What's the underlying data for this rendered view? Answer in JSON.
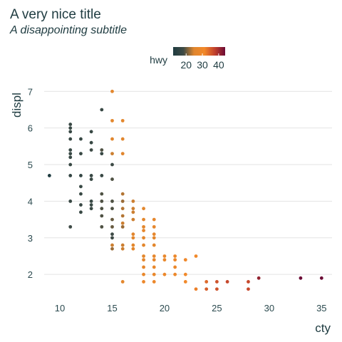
{
  "page": {
    "title": "A very nice title",
    "subtitle": "A disappointing subtitle"
  },
  "chart_data": {
    "type": "scatter",
    "title": "A very nice title",
    "subtitle": "A disappointing subtitle",
    "xlabel": "cty",
    "ylabel": "displ",
    "xlim": [
      8.5,
      36
    ],
    "ylim": [
      1.4,
      7.2
    ],
    "x_ticks": [
      10,
      15,
      20,
      25,
      30,
      35
    ],
    "y_ticks": [
      2,
      3,
      4,
      5,
      6,
      7
    ],
    "grid": "horizontal",
    "legend": {
      "title": "hwy",
      "position": "top",
      "type": "colorbar",
      "ticks": [
        20,
        30,
        40
      ],
      "range": [
        12,
        44
      ],
      "colors": [
        "#1e3b40",
        "#3f4b45",
        "#e0862e",
        "#f2892a",
        "#c1412c",
        "#6b0a35"
      ]
    },
    "points": [
      [
        9,
        4.7,
        12
      ],
      [
        11,
        6.1,
        17
      ],
      [
        11,
        6.0,
        17
      ],
      [
        11,
        5.9,
        17
      ],
      [
        11,
        5.7,
        17
      ],
      [
        11,
        5.4,
        17
      ],
      [
        11,
        5.3,
        17
      ],
      [
        11,
        5.2,
        17
      ],
      [
        11,
        5.0,
        17
      ],
      [
        11,
        4.7,
        16
      ],
      [
        11,
        4.0,
        17
      ],
      [
        11,
        3.3,
        18
      ],
      [
        12,
        5.7,
        17
      ],
      [
        12,
        5.3,
        17
      ],
      [
        12,
        4.7,
        16
      ],
      [
        12,
        4.4,
        17
      ],
      [
        12,
        4.2,
        17
      ],
      [
        12,
        3.9,
        17
      ],
      [
        12,
        3.7,
        17
      ],
      [
        13,
        5.9,
        17
      ],
      [
        13,
        5.6,
        17
      ],
      [
        13,
        5.4,
        18
      ],
      [
        13,
        4.7,
        17
      ],
      [
        13,
        4.6,
        17
      ],
      [
        13,
        4.0,
        17
      ],
      [
        13,
        3.9,
        17
      ],
      [
        13,
        3.8,
        17
      ],
      [
        14,
        6.5,
        17
      ],
      [
        14,
        5.4,
        19
      ],
      [
        14,
        5.3,
        17
      ],
      [
        14,
        4.7,
        17
      ],
      [
        14,
        4.2,
        19
      ],
      [
        14,
        4.0,
        19
      ],
      [
        14,
        3.8,
        19
      ],
      [
        14,
        3.6,
        19
      ],
      [
        14,
        3.3,
        19
      ],
      [
        15,
        7.0,
        26
      ],
      [
        15,
        6.2,
        26
      ],
      [
        15,
        5.7,
        25
      ],
      [
        15,
        5.3,
        24
      ],
      [
        15,
        5.0,
        18
      ],
      [
        15,
        4.6,
        19
      ],
      [
        15,
        4.0,
        19
      ],
      [
        15,
        3.8,
        19
      ],
      [
        15,
        3.5,
        20
      ],
      [
        15,
        3.3,
        20
      ],
      [
        15,
        3.1,
        18
      ],
      [
        15,
        3.0,
        18
      ],
      [
        15,
        2.8,
        24
      ],
      [
        15,
        2.7,
        22
      ],
      [
        16,
        6.2,
        26
      ],
      [
        16,
        5.7,
        25
      ],
      [
        16,
        5.3,
        25
      ],
      [
        16,
        4.2,
        23
      ],
      [
        16,
        4.0,
        22
      ],
      [
        16,
        3.8,
        23
      ],
      [
        16,
        3.6,
        23
      ],
      [
        16,
        3.4,
        24
      ],
      [
        16,
        3.3,
        22
      ],
      [
        16,
        2.8,
        24
      ],
      [
        16,
        2.7,
        24
      ],
      [
        16,
        1.8,
        26
      ],
      [
        17,
        4.0,
        24
      ],
      [
        17,
        3.8,
        24
      ],
      [
        17,
        3.7,
        24
      ],
      [
        17,
        3.5,
        24
      ],
      [
        17,
        3.1,
        25
      ],
      [
        17,
        3.0,
        26
      ],
      [
        17,
        2.8,
        26
      ],
      [
        17,
        2.7,
        26
      ],
      [
        18,
        3.8,
        26
      ],
      [
        18,
        3.5,
        26
      ],
      [
        18,
        3.3,
        26
      ],
      [
        18,
        3.2,
        27
      ],
      [
        18,
        3.0,
        26
      ],
      [
        18,
        2.8,
        26
      ],
      [
        18,
        2.5,
        26
      ],
      [
        18,
        2.4,
        26
      ],
      [
        18,
        2.2,
        27
      ],
      [
        18,
        1.8,
        29
      ],
      [
        18,
        2.0,
        28
      ],
      [
        19,
        3.5,
        27
      ],
      [
        19,
        3.3,
        27
      ],
      [
        19,
        3.1,
        27
      ],
      [
        19,
        3.0,
        26
      ],
      [
        19,
        2.8,
        26
      ],
      [
        19,
        2.5,
        27
      ],
      [
        19,
        2.4,
        27
      ],
      [
        19,
        2.2,
        28
      ],
      [
        19,
        2.0,
        28
      ],
      [
        19,
        1.8,
        29
      ],
      [
        20,
        2.5,
        28
      ],
      [
        20,
        2.4,
        28
      ],
      [
        20,
        2.0,
        29
      ],
      [
        21,
        2.5,
        29
      ],
      [
        21,
        2.4,
        29
      ],
      [
        21,
        2.2,
        29
      ],
      [
        21,
        2.0,
        29
      ],
      [
        22,
        2.4,
        30
      ],
      [
        22,
        2.0,
        31
      ],
      [
        22,
        1.8,
        31
      ],
      [
        23,
        2.5,
        31
      ],
      [
        23,
        1.6,
        32
      ],
      [
        24,
        1.8,
        34
      ],
      [
        24,
        1.6,
        35
      ],
      [
        25,
        1.8,
        36
      ],
      [
        25,
        1.6,
        36
      ],
      [
        26,
        1.8,
        37
      ],
      [
        28,
        1.8,
        37
      ],
      [
        28,
        1.6,
        37
      ],
      [
        29,
        1.9,
        41
      ],
      [
        33,
        1.9,
        44
      ],
      [
        35,
        1.9,
        44
      ]
    ]
  }
}
